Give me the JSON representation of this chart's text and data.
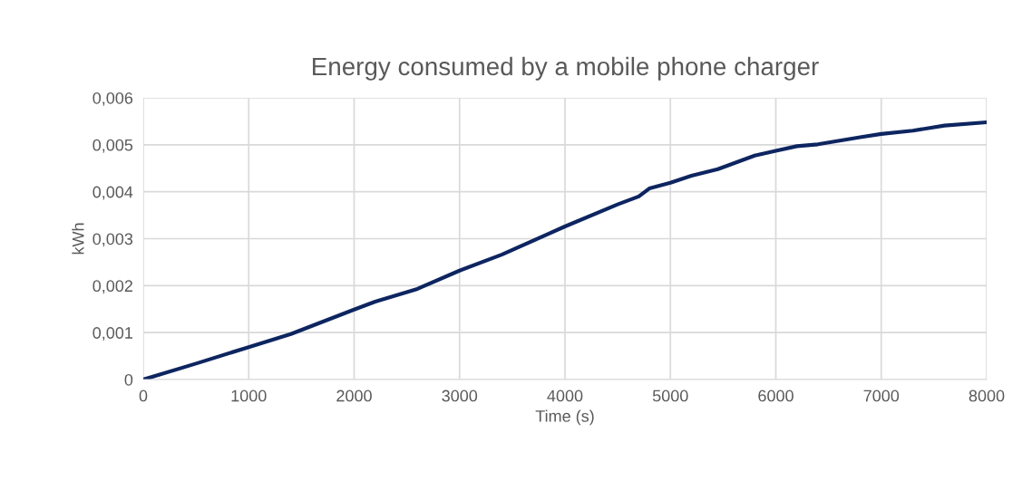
{
  "chart_data": {
    "type": "line",
    "title": "Energy consumed by a mobile phone charger",
    "xlabel": "Time (s)",
    "ylabel": "kWh",
    "x": [
      0,
      500,
      1000,
      1400,
      2000,
      2200,
      2600,
      3000,
      3400,
      4000,
      4500,
      4700,
      4800,
      5000,
      5200,
      5450,
      5800,
      6000,
      6200,
      6400,
      6800,
      7000,
      7300,
      7600,
      8000
    ],
    "series": [
      {
        "color": "#0d2560",
        "values": [
          0,
          0.00034,
          0.00069,
          0.00097,
          0.00149,
          0.00166,
          0.00193,
          0.00232,
          0.00266,
          0.00326,
          0.00373,
          0.0039,
          0.00407,
          0.00419,
          0.00434,
          0.00448,
          0.00477,
          0.00487,
          0.00497,
          0.00501,
          0.00516,
          0.00523,
          0.0053,
          0.00541,
          0.00548
        ]
      }
    ],
    "xlim": [
      0,
      8000
    ],
    "xticks": [
      0,
      1000,
      2000,
      3000,
      4000,
      5000,
      6000,
      7000,
      8000
    ],
    "ylim": [
      0,
      0.006
    ],
    "yticks": [
      0,
      {
        "value": 0.001,
        "label": "0,001"
      },
      {
        "value": 0.002,
        "label": "0,002"
      },
      {
        "value": 0.003,
        "label": "0,003"
      },
      {
        "value": 0.004,
        "label": "0,004"
      },
      {
        "value": 0.005,
        "label": "0,005"
      },
      {
        "value": 0.006,
        "label": "0,006"
      }
    ],
    "grid": true,
    "marker": "none",
    "line_style": "solid"
  }
}
